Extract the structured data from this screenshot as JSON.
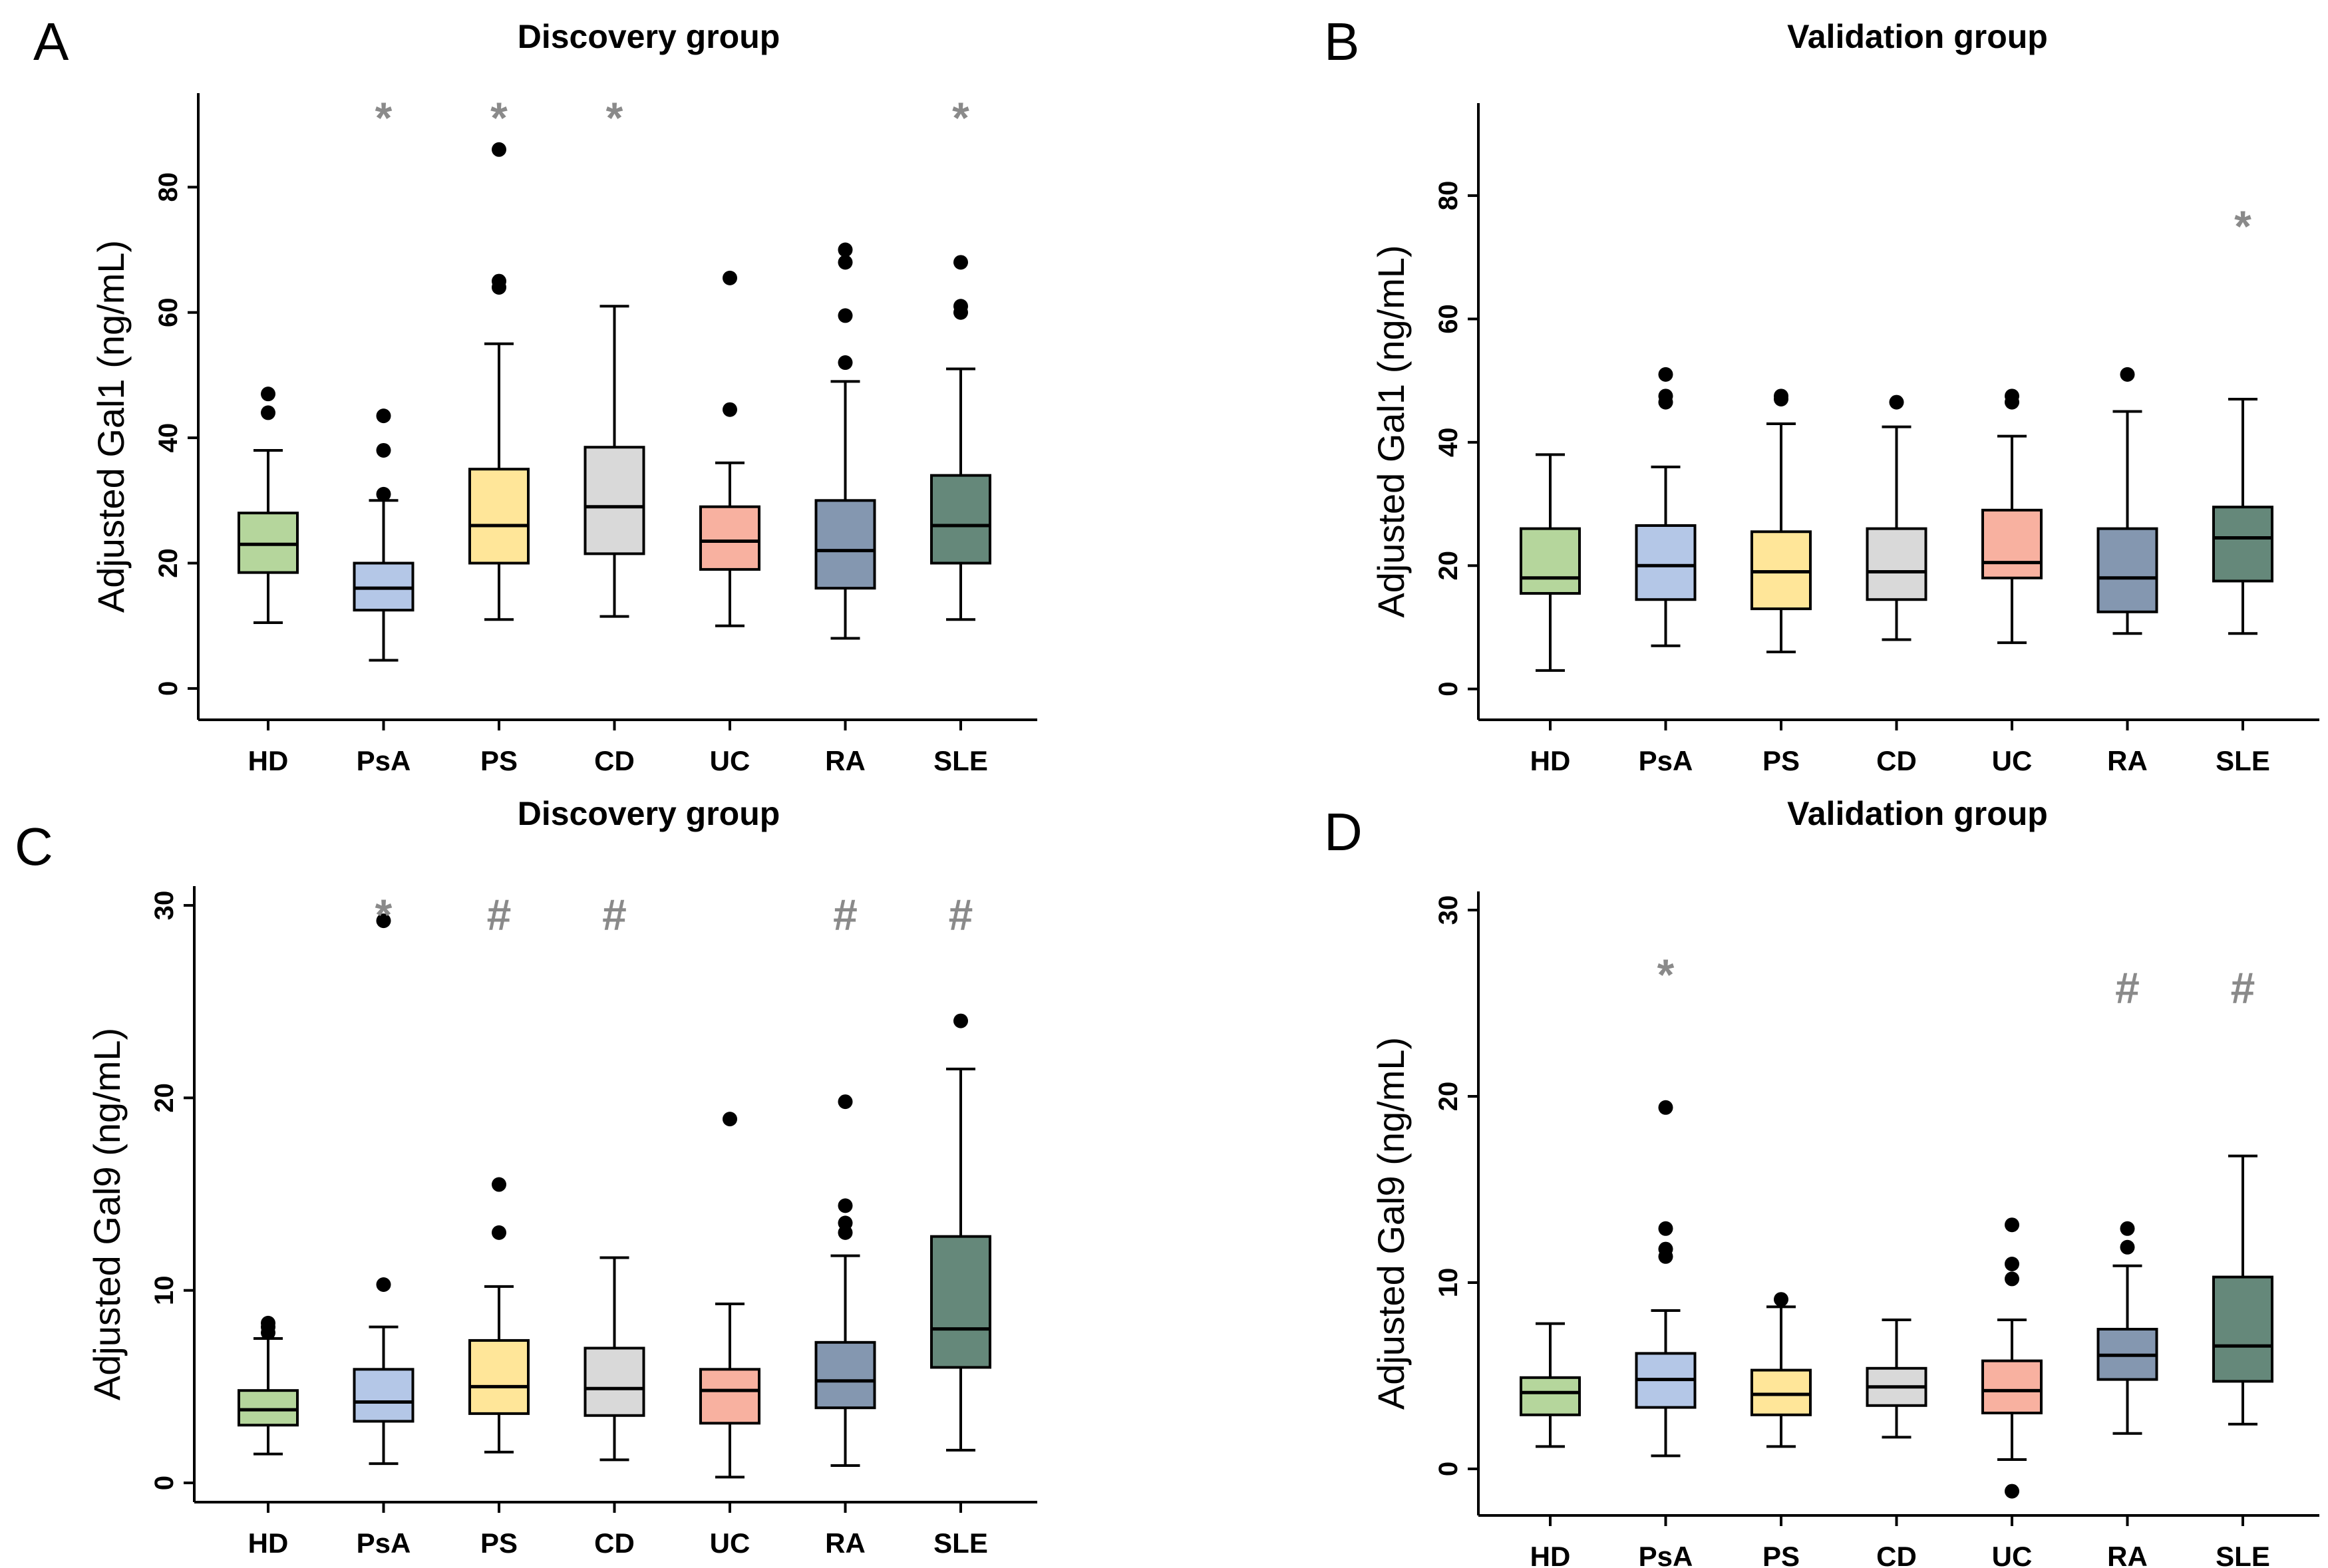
{
  "chart_data": [
    {
      "type": "box",
      "panel": "A",
      "title": "Discovery group",
      "ylabel": "Adjusted Gal1 (ng/mL)",
      "xlabel": "",
      "ylim": [
        -5,
        95
      ],
      "yticks": [
        0,
        20,
        40,
        60,
        80
      ],
      "categories": [
        "HD",
        "PsA",
        "PS",
        "CD",
        "UC",
        "RA",
        "SLE"
      ],
      "colors": [
        "#b5d69c",
        "#b4c7e7",
        "#ffe699",
        "#d9d9d9",
        "#f8b1a0",
        "#8497b0",
        "#65887a"
      ],
      "boxes": [
        {
          "min": 10.5,
          "q1": 18.5,
          "median": 23,
          "q3": 28,
          "max": 38,
          "outliers": [
            44,
            47
          ],
          "mark": ""
        },
        {
          "min": 4.5,
          "q1": 12.5,
          "median": 16,
          "q3": 20,
          "max": 30,
          "outliers": [
            31,
            38,
            43.5
          ],
          "mark": "*"
        },
        {
          "min": 11,
          "q1": 20,
          "median": 26,
          "q3": 35,
          "max": 55,
          "outliers": [
            64,
            65,
            86
          ],
          "mark": "*"
        },
        {
          "min": 11.5,
          "q1": 21.5,
          "median": 29,
          "q3": 38.5,
          "max": 61,
          "outliers": [],
          "mark": "*"
        },
        {
          "min": 10,
          "q1": 19,
          "median": 23.5,
          "q3": 29,
          "max": 36,
          "outliers": [
            44.5,
            65.5
          ],
          "mark": ""
        },
        {
          "min": 8,
          "q1": 16,
          "median": 22,
          "q3": 30,
          "max": 49,
          "outliers": [
            52,
            59.5,
            68,
            70
          ],
          "mark": ""
        },
        {
          "min": 11,
          "q1": 20,
          "median": 26,
          "q3": 34,
          "max": 51,
          "outliers": [
            60,
            61,
            68
          ],
          "mark": "*"
        }
      ]
    },
    {
      "type": "box",
      "panel": "B",
      "title": "Validation group",
      "ylabel": "Adjusted Gal1 (ng/mL)",
      "xlabel": "",
      "ylim": [
        -5,
        95
      ],
      "yticks": [
        0,
        20,
        40,
        60,
        80
      ],
      "categories": [
        "HD",
        "PsA",
        "PS",
        "CD",
        "UC",
        "RA",
        "SLE"
      ],
      "colors": [
        "#b5d69c",
        "#b4c7e7",
        "#ffe699",
        "#d9d9d9",
        "#f8b1a0",
        "#8497b0",
        "#65887a"
      ],
      "boxes": [
        {
          "min": 3,
          "q1": 15.5,
          "median": 18,
          "q3": 26,
          "max": 38,
          "outliers": [],
          "mark": ""
        },
        {
          "min": 7,
          "q1": 14.5,
          "median": 20,
          "q3": 26.5,
          "max": 36,
          "outliers": [
            46.5,
            47.5,
            51
          ],
          "mark": ""
        },
        {
          "min": 6,
          "q1": 13,
          "median": 19,
          "q3": 25.5,
          "max": 43,
          "outliers": [
            47,
            47.5
          ],
          "mark": ""
        },
        {
          "min": 8,
          "q1": 14.5,
          "median": 19,
          "q3": 26,
          "max": 42.5,
          "outliers": [
            46.5
          ],
          "mark": ""
        },
        {
          "min": 7.5,
          "q1": 18,
          "median": 20.5,
          "q3": 29,
          "max": 41,
          "outliers": [
            46.5,
            47.5
          ],
          "mark": ""
        },
        {
          "min": 9,
          "q1": 12.5,
          "median": 18,
          "q3": 26,
          "max": 45,
          "outliers": [
            51
          ],
          "mark": ""
        },
        {
          "min": 9,
          "q1": 17.5,
          "median": 24.5,
          "q3": 29.5,
          "max": 47,
          "outliers": [],
          "mark": "*"
        }
      ]
    },
    {
      "type": "box",
      "panel": "C",
      "title": "Discovery group",
      "ylabel": "Adjusted Gal9 (ng/mL)",
      "xlabel": "",
      "ylim": [
        -1,
        31
      ],
      "yticks": [
        0,
        10,
        20,
        30
      ],
      "categories": [
        "HD",
        "PsA",
        "PS",
        "CD",
        "UC",
        "RA",
        "SLE"
      ],
      "colors": [
        "#b5d69c",
        "#b4c7e7",
        "#ffe699",
        "#d9d9d9",
        "#f8b1a0",
        "#8497b0",
        "#65887a"
      ],
      "boxes": [
        {
          "min": 1.5,
          "q1": 3,
          "median": 3.8,
          "q3": 4.8,
          "max": 7.5,
          "outliers": [
            7.8,
            8.1,
            8.3
          ],
          "mark": ""
        },
        {
          "min": 1,
          "q1": 3.2,
          "median": 4.2,
          "q3": 5.9,
          "max": 8.1,
          "outliers": [
            10.3,
            29.2
          ],
          "mark": "*"
        },
        {
          "min": 1.6,
          "q1": 3.6,
          "median": 5,
          "q3": 7.4,
          "max": 10.2,
          "outliers": [
            13,
            15.5
          ],
          "mark": "#"
        },
        {
          "min": 1.2,
          "q1": 3.5,
          "median": 4.9,
          "q3": 7,
          "max": 11.7,
          "outliers": [],
          "mark": "#"
        },
        {
          "min": 0.3,
          "q1": 3.1,
          "median": 4.8,
          "q3": 5.9,
          "max": 9.3,
          "outliers": [
            18.9
          ],
          "mark": ""
        },
        {
          "min": 0.9,
          "q1": 3.9,
          "median": 5.3,
          "q3": 7.3,
          "max": 11.8,
          "outliers": [
            13,
            13.5,
            14.4,
            19.8
          ],
          "mark": "#"
        },
        {
          "min": 1.7,
          "q1": 6,
          "median": 8,
          "q3": 12.8,
          "max": 21.5,
          "outliers": [
            24
          ],
          "mark": "#"
        }
      ]
    },
    {
      "type": "box",
      "panel": "D",
      "title": "Validation group",
      "ylabel": "Adjusted Gal9 (ng/mL)",
      "xlabel": "",
      "ylim": [
        -2.5,
        31
      ],
      "yticks": [
        0,
        10,
        20,
        30
      ],
      "categories": [
        "HD",
        "PsA",
        "PS",
        "CD",
        "UC",
        "RA",
        "SLE"
      ],
      "colors": [
        "#b5d69c",
        "#b4c7e7",
        "#ffe699",
        "#d9d9d9",
        "#f8b1a0",
        "#8497b0",
        "#65887a"
      ],
      "boxes": [
        {
          "min": 1.2,
          "q1": 2.9,
          "median": 4.1,
          "q3": 4.9,
          "max": 7.8,
          "outliers": [],
          "mark": ""
        },
        {
          "min": 0.7,
          "q1": 3.3,
          "median": 4.8,
          "q3": 6.2,
          "max": 8.5,
          "outliers": [
            11.4,
            11.8,
            12.9,
            19.4
          ],
          "mark": "*"
        },
        {
          "min": 1.2,
          "q1": 2.9,
          "median": 4,
          "q3": 5.3,
          "max": 8.7,
          "outliers": [
            9.1
          ],
          "mark": ""
        },
        {
          "min": 1.7,
          "q1": 3.4,
          "median": 4.4,
          "q3": 5.4,
          "max": 8,
          "outliers": [],
          "mark": ""
        },
        {
          "min": 0.5,
          "q1": 3,
          "median": 4.2,
          "q3": 5.8,
          "max": 8,
          "outliers": [
            10.2,
            11,
            13.1,
            -1.2
          ],
          "mark": ""
        },
        {
          "min": 1.9,
          "q1": 4.8,
          "median": 6.1,
          "q3": 7.5,
          "max": 10.9,
          "outliers": [
            11.9,
            12.9
          ],
          "mark": "#"
        },
        {
          "min": 2.4,
          "q1": 4.7,
          "median": 6.6,
          "q3": 10.3,
          "max": 16.8,
          "outliers": [],
          "mark": "#"
        }
      ]
    }
  ]
}
